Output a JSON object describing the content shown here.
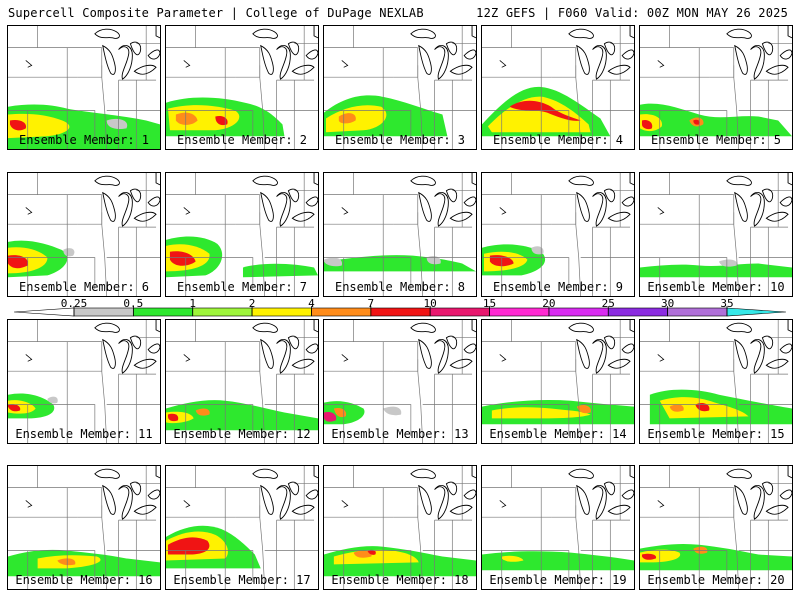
{
  "header": {
    "left_title": "Supercell Composite Parameter | College of DuPage NEXLAB",
    "right_title": "12Z GEFS | F060 Valid: 00Z MON MAY 26 2025"
  },
  "colorbar": {
    "tick_labels": [
      "0.25",
      "0.5",
      "1",
      "2",
      "4",
      "7",
      "10",
      "15",
      "20",
      "25",
      "30",
      "35"
    ],
    "colors": [
      "#ffffff",
      "#c8c8c8",
      "#2ee82e",
      "#9ef53a",
      "#fff200",
      "#ff8c1a",
      "#f01414",
      "#e8186e",
      "#ff2ad2",
      "#d82cf0",
      "#8b2ce0",
      "#b070d8",
      "#36e8e8"
    ]
  },
  "panels": [
    {
      "label": "Ensemble Member: 1"
    },
    {
      "label": "Ensemble Member: 2"
    },
    {
      "label": "Ensemble Member: 3"
    },
    {
      "label": "Ensemble Member: 4"
    },
    {
      "label": "Ensemble Member: 5"
    },
    {
      "label": "Ensemble Member: 6"
    },
    {
      "label": "Ensemble Member: 7"
    },
    {
      "label": "Ensemble Member: 8"
    },
    {
      "label": "Ensemble Member: 9"
    },
    {
      "label": "Ensemble Member: 10"
    },
    {
      "label": "Ensemble Member: 11"
    },
    {
      "label": "Ensemble Member: 12"
    },
    {
      "label": "Ensemble Member: 13"
    },
    {
      "label": "Ensemble Member: 14"
    },
    {
      "label": "Ensemble Member: 15"
    },
    {
      "label": "Ensemble Member: 16"
    },
    {
      "label": "Ensemble Member: 17"
    },
    {
      "label": "Ensemble Member: 18"
    },
    {
      "label": "Ensemble Member: 19"
    },
    {
      "label": "Ensemble Member: 20"
    }
  ]
}
